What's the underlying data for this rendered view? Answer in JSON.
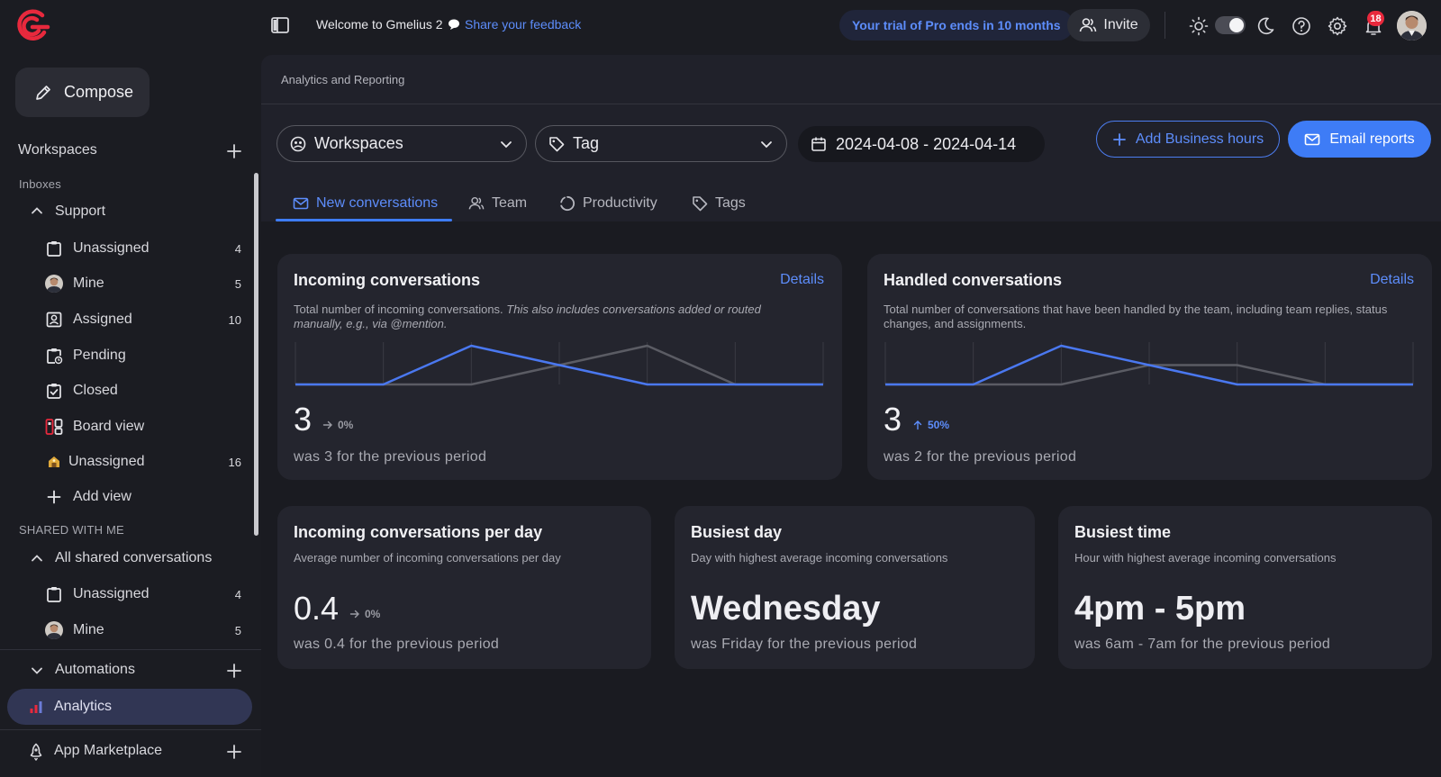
{
  "topbar": {
    "welcome": "Welcome to Gmelius 2",
    "feedback": "Share your feedback",
    "trial": "Your trial of Pro ends in 10 months",
    "invite": "Invite",
    "notifications_count": "18",
    "icons": [
      "panel-toggle-icon",
      "sun-icon",
      "moon-icon",
      "help-icon",
      "gear-icon",
      "bell-icon"
    ]
  },
  "sidebar": {
    "compose": "Compose",
    "workspaces": "Workspaces",
    "inboxes": "Inboxes",
    "support": "Support",
    "items": [
      {
        "label": "Unassigned",
        "count": "4"
      },
      {
        "label": "Mine",
        "count": "5"
      },
      {
        "label": "Assigned",
        "count": "10"
      },
      {
        "label": "Pending",
        "count": ""
      },
      {
        "label": "Closed",
        "count": ""
      },
      {
        "label": "Board view",
        "count": ""
      },
      {
        "label": "Unassigned",
        "count": "16"
      },
      {
        "label": "Add view",
        "count": ""
      }
    ],
    "shared_heading": "SHARED WITH ME",
    "all_shared": "All shared conversations",
    "shared_items": [
      {
        "label": "Unassigned",
        "count": "4"
      },
      {
        "label": "Mine",
        "count": "5"
      }
    ],
    "automations": "Automations",
    "analytics": "Analytics",
    "marketplace": "App Marketplace"
  },
  "main": {
    "title": "Analytics and Reporting",
    "filters": {
      "workspaces": "Workspaces",
      "tag": "Tag",
      "date_range": "2024-04-08 - 2024-04-14"
    },
    "buttons": {
      "add_business_hours": "Add Business hours",
      "email_reports": "Email reports"
    },
    "tabs": [
      "New conversations",
      "Team",
      "Productivity",
      "Tags"
    ],
    "active_tab": "New conversations"
  },
  "cards": {
    "incoming": {
      "title": "Incoming conversations",
      "details": "Details",
      "desc_plain": "Total number of incoming conversations. ",
      "desc_italic": "This also includes conversations added or routed manually, e.g., via @mention.",
      "value": "3",
      "delta": "0%",
      "prev": "was 3 for the previous period"
    },
    "handled": {
      "title": "Handled conversations",
      "details": "Details",
      "desc": "Total number of conversations that have been handled by the team, including team replies, status changes, and assignments.",
      "value": "3",
      "delta": "50%",
      "prev": "was 2 for the previous period"
    },
    "per_day": {
      "title": "Incoming conversations per day",
      "desc": "Average number of incoming conversations per day",
      "value": "0.4",
      "delta": "0%",
      "prev": "was 0.4 for the previous period"
    },
    "busiest_day": {
      "title": "Busiest day",
      "desc": "Day with highest average incoming conversations",
      "value": "Wednesday",
      "prev": "was Friday for the previous period"
    },
    "busiest_time": {
      "title": "Busiest time",
      "desc": "Hour with highest average incoming conversations",
      "value": "4pm - 5pm",
      "prev": "was 6am - 7am for the previous period"
    }
  },
  "chart_data": [
    {
      "type": "line",
      "x": [
        1,
        2,
        3,
        4,
        5,
        6,
        7
      ],
      "ylim": [
        0,
        3
      ],
      "series": [
        {
          "values": [
            0,
            0,
            3,
            1.5,
            0,
            0,
            0
          ],
          "color": "#4a78f0"
        },
        {
          "values": [
            0,
            0,
            0,
            1.5,
            3,
            0,
            0
          ],
          "color": "#5b5c64"
        }
      ]
    },
    {
      "type": "line",
      "x": [
        1,
        2,
        3,
        4,
        5,
        6,
        7
      ],
      "ylim": [
        0,
        3
      ],
      "series": [
        {
          "values": [
            0,
            0,
            3,
            1.5,
            0,
            0,
            0
          ],
          "color": "#4a78f0"
        },
        {
          "values": [
            0,
            0,
            0,
            1.5,
            1.5,
            0,
            0
          ],
          "color": "#5b5c64"
        }
      ]
    }
  ],
  "colors": {
    "accent": "#3e7cf6",
    "brand_red": "#e8293d"
  }
}
